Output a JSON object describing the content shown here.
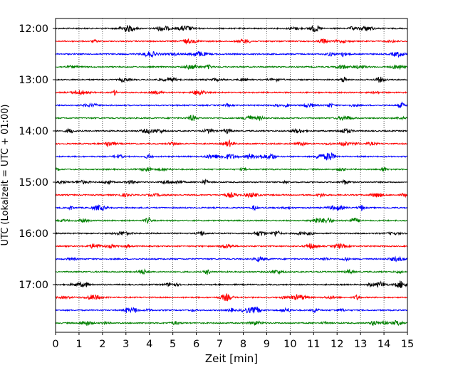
{
  "chart_data": {
    "type": "line",
    "title": "",
    "xlabel": "Zeit  [min]",
    "ylabel": "UTC (Lokalzeit = UTC + 01:00)",
    "xlim": [
      0,
      15
    ],
    "x_ticks": [
      0,
      1,
      2,
      3,
      4,
      5,
      6,
      7,
      8,
      9,
      10,
      11,
      12,
      13,
      14,
      15
    ],
    "y_ticks": [
      "12:00",
      "13:00",
      "14:00",
      "15:00",
      "16:00",
      "17:00"
    ],
    "grid": "vertical dotted",
    "trace_minutes_per_line": 15,
    "start_time": "12:00",
    "line_colors": [
      "#000000",
      "#ff0000",
      "#0000ff",
      "#008000"
    ],
    "traces": [
      {
        "start": "12:00",
        "color": "#000000"
      },
      {
        "start": "12:15",
        "color": "#ff0000"
      },
      {
        "start": "12:30",
        "color": "#0000ff"
      },
      {
        "start": "12:45",
        "color": "#008000"
      },
      {
        "start": "13:00",
        "color": "#000000"
      },
      {
        "start": "13:15",
        "color": "#ff0000"
      },
      {
        "start": "13:30",
        "color": "#0000ff"
      },
      {
        "start": "13:45",
        "color": "#008000"
      },
      {
        "start": "14:00",
        "color": "#000000"
      },
      {
        "start": "14:15",
        "color": "#ff0000"
      },
      {
        "start": "14:30",
        "color": "#0000ff"
      },
      {
        "start": "14:45",
        "color": "#008000"
      },
      {
        "start": "15:00",
        "color": "#000000"
      },
      {
        "start": "15:15",
        "color": "#ff0000"
      },
      {
        "start": "15:30",
        "color": "#0000ff"
      },
      {
        "start": "15:45",
        "color": "#008000"
      },
      {
        "start": "16:00",
        "color": "#000000"
      },
      {
        "start": "16:15",
        "color": "#ff0000"
      },
      {
        "start": "16:30",
        "color": "#0000ff"
      },
      {
        "start": "16:45",
        "color": "#008000"
      },
      {
        "start": "17:00",
        "color": "#000000"
      },
      {
        "start": "17:15",
        "color": "#ff0000"
      },
      {
        "start": "17:30",
        "color": "#0000ff"
      },
      {
        "start": "17:45",
        "color": "#008000"
      }
    ]
  }
}
